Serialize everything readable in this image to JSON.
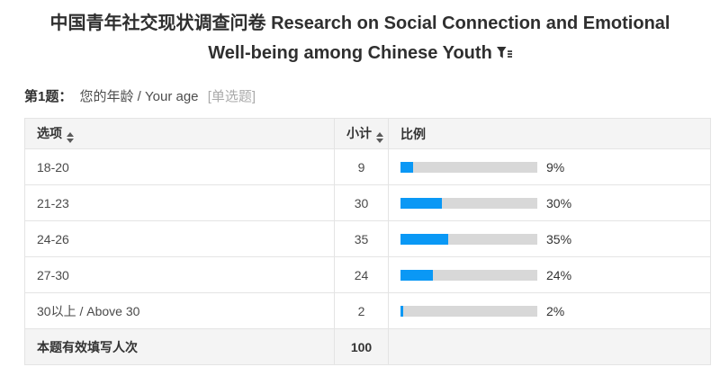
{
  "header": {
    "title": "中国青年社交现状调查问卷 Research on Social Connection and Emotional Well-being among Chinese Youth",
    "filter_icon": "filter-funnel-icon"
  },
  "question": {
    "number": "第1题：",
    "text": "您的年龄 / Your age",
    "type": "[单选题]"
  },
  "table": {
    "columns": [
      {
        "label": "选项"
      },
      {
        "label": "小计"
      },
      {
        "label": "比例"
      }
    ],
    "rows": [
      {
        "label": "18-20",
        "count": "9",
        "percent": 9,
        "percent_label": "9%"
      },
      {
        "label": "21-23",
        "count": "30",
        "percent": 30,
        "percent_label": "30%"
      },
      {
        "label": "24-26",
        "count": "35",
        "percent": 35,
        "percent_label": "35%"
      },
      {
        "label": "27-30",
        "count": "24",
        "percent": 24,
        "percent_label": "24%"
      },
      {
        "label": "30以上 / Above 30",
        "count": "2",
        "percent": 2,
        "percent_label": "2%"
      }
    ],
    "footer": {
      "label": "本题有效填写人次",
      "count": "100"
    }
  },
  "colors": {
    "bar_fill": "#0a98f5",
    "bar_track": "#d8d8d8",
    "header_bg": "#f4f4f4",
    "border": "#e4e4e4"
  }
}
